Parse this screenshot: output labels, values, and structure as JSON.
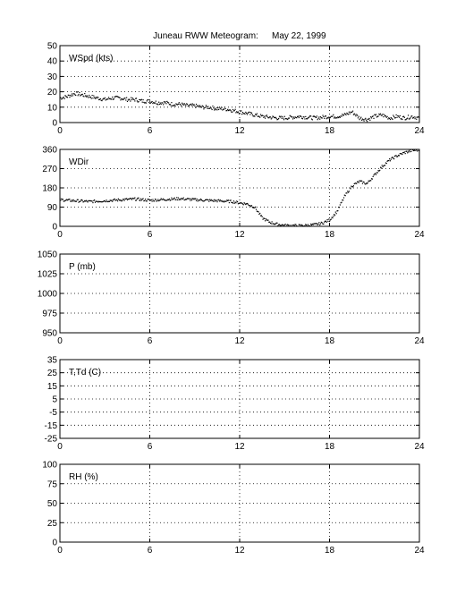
{
  "title": "Juneau RWW Meteogram:",
  "date": "May 22, 1999",
  "chart_data": [
    {
      "type": "scatter",
      "label": "WSpd (kts)",
      "xlim": [
        0,
        24
      ],
      "xticks": [
        "0",
        "6",
        "12",
        "18",
        "24"
      ],
      "ylim": [
        0,
        50
      ],
      "yticks": [
        "0",
        "10",
        "20",
        "30",
        "40",
        "50"
      ],
      "grid": true,
      "x": [
        0,
        0.5,
        1,
        1.5,
        2,
        2.5,
        3,
        3.5,
        4,
        4.5,
        5,
        5.5,
        6,
        6.5,
        7,
        7.5,
        8,
        8.5,
        9,
        9.5,
        10,
        10.5,
        11,
        11.5,
        12,
        12.5,
        13,
        13.5,
        14,
        14.5,
        15,
        15.5,
        16,
        16.5,
        17,
        17.5,
        18,
        18.5,
        19,
        19.5,
        20,
        20.5,
        21,
        21.5,
        22,
        22.5,
        23,
        23.5,
        24
      ],
      "y": [
        16,
        17,
        19,
        18,
        17,
        16,
        15,
        16,
        16,
        15,
        15,
        14,
        14,
        13,
        13,
        12,
        12,
        11,
        11,
        10,
        10,
        9,
        9,
        8,
        7,
        6,
        5,
        4,
        3.5,
        3,
        3,
        3.5,
        4,
        3.5,
        3,
        3.5,
        4,
        4,
        5,
        7,
        3,
        2,
        4,
        5,
        3,
        4,
        3,
        4,
        3
      ]
    },
    {
      "type": "scatter",
      "label": "WDir",
      "xlim": [
        0,
        24
      ],
      "xticks": [
        "0",
        "6",
        "12",
        "18",
        "24"
      ],
      "ylim": [
        0,
        360
      ],
      "yticks": [
        "0",
        "90",
        "180",
        "270",
        "360"
      ],
      "grid": true,
      "x": [
        0,
        0.5,
        1,
        1.5,
        2,
        2.5,
        3,
        3.5,
        4,
        4.5,
        5,
        5.5,
        6,
        6.5,
        7,
        7.5,
        8,
        8.5,
        9,
        9.5,
        10,
        10.5,
        11,
        11.5,
        12,
        12.5,
        13,
        13.5,
        14,
        14.5,
        15,
        15.5,
        16,
        16.5,
        17,
        17.5,
        18,
        18.5,
        19,
        19.5,
        20,
        20.5,
        21,
        21.5,
        22,
        22.5,
        23,
        23.5,
        24
      ],
      "y": [
        125,
        122,
        120,
        118,
        116,
        118,
        120,
        122,
        124,
        126,
        128,
        125,
        122,
        124,
        126,
        128,
        130,
        127,
        125,
        123,
        121,
        120,
        118,
        116,
        110,
        105,
        90,
        40,
        20,
        10,
        5,
        4,
        3,
        5,
        8,
        15,
        30,
        70,
        140,
        190,
        210,
        200,
        240,
        280,
        310,
        330,
        345,
        355,
        358
      ]
    },
    {
      "type": "scatter",
      "label": "P (mb)",
      "xlim": [
        0,
        24
      ],
      "xticks": [
        "0",
        "6",
        "12",
        "18",
        "24"
      ],
      "ylim": [
        950,
        1050
      ],
      "yticks": [
        "950",
        "975",
        "1000",
        "1025",
        "1050"
      ],
      "grid": true,
      "x": [],
      "y": []
    },
    {
      "type": "scatter",
      "label": "T,Td (C)",
      "xlim": [
        0,
        24
      ],
      "xticks": [
        "0",
        "6",
        "12",
        "18",
        "24"
      ],
      "ylim": [
        -25,
        35
      ],
      "yticks": [
        "-25",
        "-15",
        "-5",
        "5",
        "15",
        "25",
        "35"
      ],
      "grid": true,
      "x": [],
      "y": []
    },
    {
      "type": "scatter",
      "label": "RH (%)",
      "xlim": [
        0,
        24
      ],
      "xticks": [
        "0",
        "6",
        "12",
        "18",
        "24"
      ],
      "ylim": [
        0,
        100
      ],
      "yticks": [
        "0",
        "25",
        "50",
        "75",
        "100"
      ],
      "grid": true,
      "x": [],
      "y": []
    }
  ]
}
